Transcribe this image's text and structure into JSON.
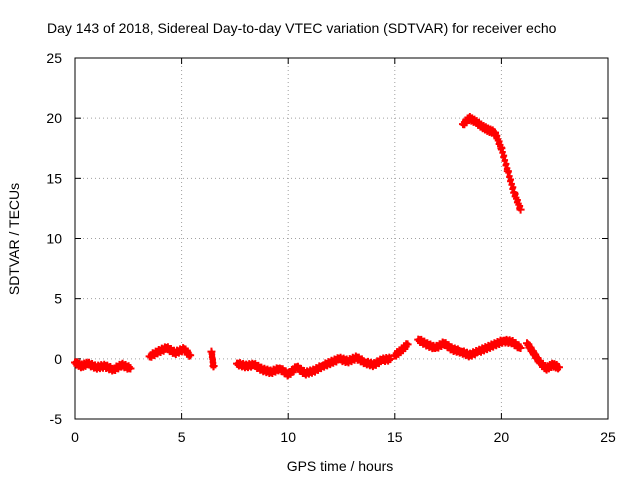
{
  "chart_data": {
    "type": "scatter",
    "title": "Day 143 of 2018, Sidereal Day-to-day VTEC variation (SDTVAR) for receiver echo",
    "xlabel": "GPS time / hours",
    "ylabel": "SDTVAR / TECUs",
    "xlim": [
      0,
      25
    ],
    "ylim": [
      -5,
      25
    ],
    "xticks": [
      0,
      5,
      10,
      15,
      20,
      25
    ],
    "yticks": [
      -5,
      0,
      5,
      10,
      15,
      20,
      25
    ],
    "grid": true,
    "marker": "+",
    "color": "#ff0000",
    "series": [
      {
        "name": "SDTVAR",
        "segments": [
          {
            "x": [
              0.0,
              0.3,
              0.6,
              1.0,
              1.4,
              1.8,
              2.2,
              2.6
            ],
            "y": [
              -0.3,
              -0.6,
              -0.4,
              -0.7,
              -0.6,
              -0.9,
              -0.5,
              -0.8
            ]
          },
          {
            "x": [
              3.5,
              3.9,
              4.3,
              4.7,
              5.1,
              5.4
            ],
            "y": [
              0.2,
              0.6,
              0.9,
              0.5,
              0.8,
              0.3
            ]
          },
          {
            "x": [
              6.4,
              6.5
            ],
            "y": [
              0.6,
              -0.6
            ]
          },
          {
            "x": [
              7.6,
              8.0,
              8.4,
              8.8,
              9.2,
              9.6,
              10.0,
              10.4,
              10.8,
              11.2,
              11.6,
              12.0,
              12.4,
              12.8,
              13.2,
              13.6,
              14.0,
              14.4,
              14.8
            ],
            "y": [
              -0.4,
              -0.6,
              -0.5,
              -0.9,
              -1.1,
              -0.8,
              -1.3,
              -0.7,
              -1.2,
              -1.0,
              -0.6,
              -0.3,
              0.0,
              -0.2,
              0.1,
              -0.3,
              -0.5,
              -0.1,
              0.0
            ]
          },
          {
            "x": [
              15.0,
              15.3,
              15.6
            ],
            "y": [
              0.3,
              0.7,
              1.2
            ]
          },
          {
            "x": [
              16.1,
              16.5,
              16.9,
              17.3,
              17.7,
              18.1,
              18.5,
              18.9,
              19.3,
              19.7,
              20.1,
              20.5,
              20.9
            ],
            "y": [
              1.6,
              1.2,
              0.9,
              1.3,
              0.8,
              0.6,
              0.3,
              0.6,
              0.9,
              1.2,
              1.5,
              1.4,
              0.9
            ]
          },
          {
            "x": [
              18.2,
              18.5,
              18.8,
              19.1,
              19.4,
              19.7,
              20.0,
              20.3,
              20.6,
              20.9
            ],
            "y": [
              19.5,
              20.0,
              19.7,
              19.3,
              19.0,
              18.8,
              17.5,
              15.6,
              13.8,
              12.4
            ]
          },
          {
            "x": [
              21.2,
              21.5,
              21.8,
              22.1,
              22.4,
              22.7
            ],
            "y": [
              1.3,
              0.5,
              -0.3,
              -0.8,
              -0.5,
              -0.7
            ]
          }
        ]
      }
    ]
  }
}
